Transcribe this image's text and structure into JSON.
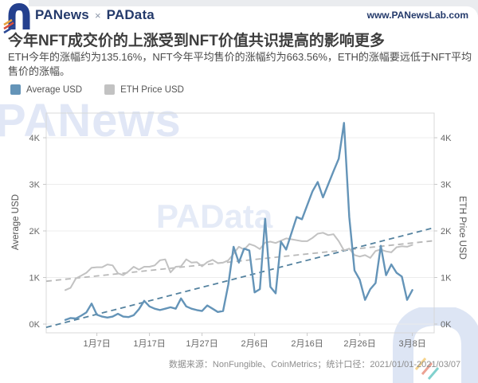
{
  "header": {
    "brand_left": "PANews",
    "brand_sep": "×",
    "brand_right": "PAData",
    "website": "www.PANewsLab.com"
  },
  "title": "今年NFT成交价的上涨受到NFT价值共识提高的影响更多",
  "subtitle": "ETH今年的涨幅约为135.16%，NFT今年平均售价的涨幅约为663.56%，ETH的涨幅要远低于NFT平均售价的涨幅。",
  "legend": [
    {
      "label": "Average USD",
      "color": "#6494b8"
    },
    {
      "label": "ETH Price USD",
      "color": "#c2c2c2"
    }
  ],
  "watermarks": {
    "top": "PANews",
    "middle": "PAData"
  },
  "caption": "数据来源：NonFungible、CoinMetrics；统计口径：2021/01/01-2021/03/07",
  "colors": {
    "brand_navy": "#243a6b",
    "avg_line": "#6494b8",
    "eth_line": "#c2c2c2",
    "avg_trend": "#54829f",
    "eth_trend": "#b8b8b8",
    "grid": "#ececec"
  },
  "chart_data": {
    "type": "line",
    "x_unit": "date",
    "x_range": [
      "2021-01-01",
      "2021-03-08"
    ],
    "x_axis": {
      "tick_labels": [
        "1月7日",
        "1月17日",
        "1月27日",
        "2月6日",
        "2月16日",
        "2月26日",
        "3月8日"
      ],
      "tick_days": [
        6,
        16,
        26,
        36,
        46,
        56,
        66
      ]
    },
    "left_axis": {
      "label": "Average USD",
      "ticks": [
        "0K",
        "1K",
        "2K",
        "3K",
        "4K"
      ],
      "lim_k": [
        0,
        4.55
      ]
    },
    "right_axis": {
      "label": "ETH Price USD",
      "ticks": [
        "0K",
        "1K",
        "2K",
        "3K",
        "4K"
      ],
      "lim_k": [
        0,
        4.55
      ]
    },
    "grid": "horizontal",
    "legend_position": "top-left",
    "series": [
      {
        "name": "Average USD",
        "axis": "left",
        "color": "#6494b8",
        "style": "solid",
        "unit": "K USD",
        "values_k": [
          0.09,
          0.13,
          0.12,
          0.18,
          0.25,
          0.44,
          0.2,
          0.16,
          0.14,
          0.16,
          0.22,
          0.16,
          0.15,
          0.19,
          0.32,
          0.5,
          0.38,
          0.33,
          0.3,
          0.33,
          0.36,
          0.33,
          0.55,
          0.38,
          0.33,
          0.3,
          0.28,
          0.4,
          0.33,
          0.26,
          0.28,
          0.85,
          1.66,
          1.32,
          1.62,
          1.58,
          0.68,
          0.75,
          2.26,
          0.8,
          0.66,
          1.77,
          1.6,
          1.95,
          2.3,
          2.25,
          2.55,
          2.85,
          3.05,
          2.72,
          3.0,
          3.28,
          3.55,
          4.32,
          2.3,
          1.15,
          0.95,
          0.52,
          0.75,
          0.88,
          1.68,
          1.05,
          1.28,
          1.1,
          1.02,
          0.52,
          0.73
        ]
      },
      {
        "name": "ETH Price USD",
        "axis": "right",
        "color": "#c2c2c2",
        "style": "solid",
        "unit": "K USD",
        "values_k": [
          0.73,
          0.78,
          0.98,
          1.04,
          1.1,
          1.21,
          1.22,
          1.22,
          1.28,
          1.26,
          1.09,
          1.05,
          1.13,
          1.23,
          1.17,
          1.23,
          1.23,
          1.26,
          1.37,
          1.39,
          1.11,
          1.23,
          1.24,
          1.39,
          1.32,
          1.33,
          1.24,
          1.33,
          1.38,
          1.31,
          1.32,
          1.37,
          1.51,
          1.66,
          1.6,
          1.72,
          1.68,
          1.61,
          1.75,
          1.77,
          1.74,
          1.79,
          1.84,
          1.82,
          1.8,
          1.78,
          1.78,
          1.85,
          1.94,
          1.96,
          1.91,
          1.93,
          1.78,
          1.58,
          1.62,
          1.48,
          1.45,
          1.48,
          1.42,
          1.57,
          1.6,
          1.56,
          1.54,
          1.65,
          1.67,
          1.66,
          1.7
        ]
      }
    ],
    "trends": [
      {
        "name": "ETH Price USD linear trend",
        "color": "#b8b8b8",
        "style": "dashed",
        "endpoints_k": [
          0.92,
          1.79
        ]
      },
      {
        "name": "Average USD linear trend",
        "color": "#54829f",
        "style": "dashed",
        "endpoints_k": [
          -0.07,
          2.07
        ]
      }
    ]
  }
}
